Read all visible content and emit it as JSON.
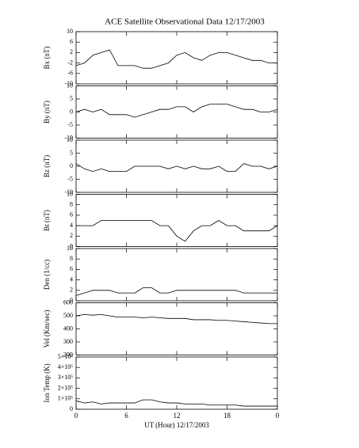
{
  "chart_data": [
    {
      "type": "line",
      "title": "ACE Satellite Observational Data   12/17/2003",
      "ylabel": "Bx (nT)",
      "xlim": [
        0,
        24
      ],
      "ylim": [
        -10,
        10
      ],
      "yticks": [
        -10,
        -6,
        -2,
        2,
        6,
        10
      ],
      "x": [
        0,
        1,
        2,
        3,
        4,
        5,
        6,
        7,
        8,
        9,
        10,
        11,
        12,
        13,
        14,
        15,
        16,
        17,
        18,
        19,
        20,
        21,
        22,
        23,
        24
      ],
      "series": [
        {
          "color": "#000000",
          "values": [
            -3,
            -2,
            1,
            2,
            3,
            -3,
            -3,
            -3,
            -4,
            -4,
            -3,
            -2,
            1,
            2,
            0,
            -1,
            1,
            2,
            2,
            1,
            0,
            -1,
            -1,
            -2,
            -2
          ]
        }
      ]
    },
    {
      "type": "line",
      "ylabel": "By (nT)",
      "xlim": [
        0,
        24
      ],
      "ylim": [
        -10,
        10
      ],
      "yticks": [
        -10,
        -5,
        0,
        5,
        10
      ],
      "x": [
        0,
        1,
        2,
        3,
        4,
        5,
        6,
        7,
        8,
        9,
        10,
        11,
        12,
        13,
        14,
        15,
        16,
        17,
        18,
        19,
        20,
        21,
        22,
        23,
        24
      ],
      "series": [
        {
          "color": "#000000",
          "values": [
            0,
            1,
            0,
            1,
            -1,
            -1,
            -1,
            -2,
            -1,
            0,
            1,
            1,
            2,
            2,
            0,
            2,
            3,
            3,
            3,
            2,
            1,
            1,
            0,
            0,
            1
          ]
        }
      ]
    },
    {
      "type": "line",
      "ylabel": "Bz (nT)",
      "xlim": [
        0,
        24
      ],
      "ylim": [
        -10,
        10
      ],
      "yticks": [
        -10,
        -5,
        0,
        5,
        10
      ],
      "x": [
        0,
        1,
        2,
        3,
        4,
        5,
        6,
        7,
        8,
        9,
        10,
        11,
        12,
        13,
        14,
        15,
        16,
        17,
        18,
        19,
        20,
        21,
        22,
        23,
        24
      ],
      "series": [
        {
          "color": "#000000",
          "values": [
            1,
            -1,
            -2,
            -1,
            -2,
            -2,
            -2,
            0,
            0,
            0,
            0,
            -1,
            0,
            -1,
            0,
            -1,
            -1,
            0,
            -2,
            -2,
            1,
            0,
            0,
            -1,
            0
          ]
        }
      ]
    },
    {
      "type": "line",
      "ylabel": "Bt (nT)",
      "xlim": [
        0,
        24
      ],
      "ylim": [
        0,
        10
      ],
      "yticks": [
        0,
        2,
        4,
        6,
        8,
        10
      ],
      "x": [
        0,
        1,
        2,
        3,
        4,
        5,
        6,
        7,
        8,
        9,
        10,
        11,
        12,
        13,
        14,
        15,
        16,
        17,
        18,
        19,
        20,
        21,
        22,
        23,
        24
      ],
      "series": [
        {
          "color": "#000000",
          "values": [
            4,
            4,
            4,
            5,
            5,
            5,
            5,
            5,
            5,
            5,
            4,
            4,
            2,
            1,
            3,
            4,
            4,
            5,
            4,
            4,
            3,
            3,
            3,
            3,
            4
          ]
        }
      ]
    },
    {
      "type": "line",
      "ylabel": "Den (1/cc)",
      "xlim": [
        0,
        24
      ],
      "ylim": [
        0,
        10
      ],
      "yticks": [
        0,
        2,
        4,
        6,
        8,
        10
      ],
      "x": [
        0,
        1,
        2,
        3,
        4,
        5,
        6,
        7,
        8,
        9,
        10,
        11,
        12,
        13,
        14,
        15,
        16,
        17,
        18,
        19,
        20,
        21,
        22,
        23,
        24
      ],
      "series": [
        {
          "color": "#000000",
          "values": [
            1,
            1.5,
            2,
            2,
            2,
            1.5,
            1.5,
            1.5,
            2.5,
            2.5,
            1.5,
            1.5,
            2,
            2,
            2,
            2,
            2,
            2,
            2,
            2,
            1.5,
            1.5,
            1.5,
            1.5,
            1.5
          ]
        }
      ]
    },
    {
      "type": "line",
      "ylabel": "Vel (Km/sec)",
      "xlim": [
        0,
        24
      ],
      "ylim": [
        200,
        600
      ],
      "yticks": [
        200,
        300,
        400,
        500,
        600
      ],
      "x": [
        0,
        1,
        2,
        3,
        4,
        5,
        6,
        7,
        8,
        9,
        10,
        11,
        12,
        13,
        14,
        15,
        16,
        17,
        18,
        19,
        20,
        21,
        22,
        23,
        24
      ],
      "series": [
        {
          "color": "#000000",
          "values": [
            500,
            510,
            505,
            510,
            500,
            490,
            490,
            490,
            485,
            490,
            485,
            480,
            480,
            480,
            470,
            470,
            470,
            465,
            465,
            460,
            455,
            450,
            445,
            440,
            440
          ]
        }
      ]
    },
    {
      "type": "line",
      "ylabel": "Ion Temp (K)",
      "xlabel": "UT (Hour)  12/17/2003",
      "xlim": [
        0,
        24
      ],
      "ylim": [
        0,
        500000
      ],
      "yticks": [
        0,
        {
          "value": 100000,
          "label": "1×10⁵"
        },
        {
          "value": 200000,
          "label": "2×10⁵"
        },
        {
          "value": 300000,
          "label": "3×10⁵"
        },
        {
          "value": 400000,
          "label": "4×10⁵"
        },
        {
          "value": 500000,
          "label": "5×10⁵"
        }
      ],
      "xticks": [
        0,
        6,
        12,
        18,
        {
          "value": 24,
          "label": "0"
        }
      ],
      "x": [
        0,
        1,
        2,
        3,
        4,
        5,
        6,
        7,
        8,
        9,
        10,
        11,
        12,
        13,
        14,
        15,
        16,
        17,
        18,
        19,
        20,
        21,
        22,
        23,
        24
      ],
      "series": [
        {
          "color": "#000000",
          "values": [
            80000,
            60000,
            70000,
            50000,
            60000,
            60000,
            60000,
            60000,
            90000,
            90000,
            70000,
            60000,
            60000,
            50000,
            50000,
            50000,
            40000,
            40000,
            40000,
            40000,
            30000,
            30000,
            30000,
            30000,
            30000
          ]
        }
      ]
    }
  ]
}
